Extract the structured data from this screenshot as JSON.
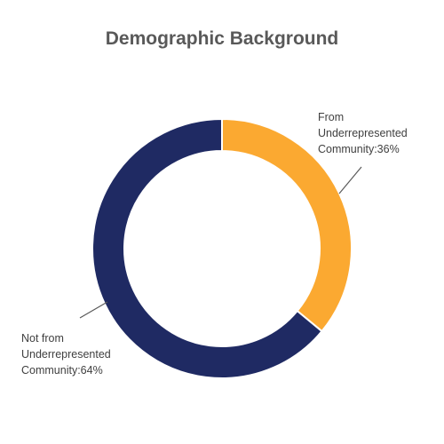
{
  "chart_data": {
    "type": "pie",
    "variant": "donut",
    "title": "Demographic Background",
    "slices": [
      {
        "label_lines": [
          "From",
          "Underrepresented",
          "Community:36%"
        ],
        "value": 36,
        "color": "#FBA931"
      },
      {
        "label_lines": [
          "Not from",
          "Underrepresented",
          "Community:64%"
        ],
        "value": 64,
        "color": "#1F2A63"
      }
    ],
    "start_angle": "top",
    "direction": "clockwise",
    "legend": "none"
  }
}
